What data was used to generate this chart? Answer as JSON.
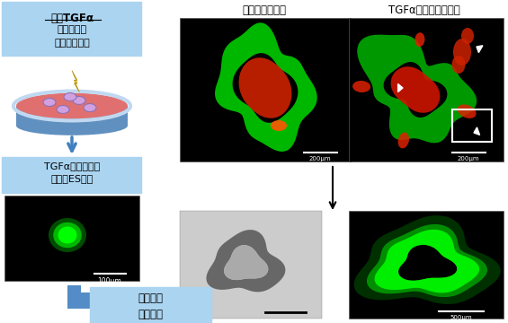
{
  "title_text1": "ヒトTGFα",
  "title_text2": "胃がん原因",
  "title_text3": "遅伝子の一つ",
  "label_es_cells": "TGFαを過剰発現\nさせたES細胞",
  "label_differentiation": "胃組織へ\n分化誘導",
  "label_normal": "通常培養胃組織",
  "label_tgfa": "TGFα過剰発現胃組織",
  "scale_100": "100μm",
  "scale_200a": "200μm",
  "scale_200b": "200μm",
  "scale_500": "500μm",
  "bg_color": "#ffffff",
  "light_blue": "#aad4f0",
  "dish_top_color": "#e07070",
  "dish_side_color": "#6090c0",
  "dish_rim_color": "#c0d8f0",
  "cell_color": "#d0a0e0",
  "arrow_color": "#4080c0",
  "lightning_color": "#f0d030"
}
